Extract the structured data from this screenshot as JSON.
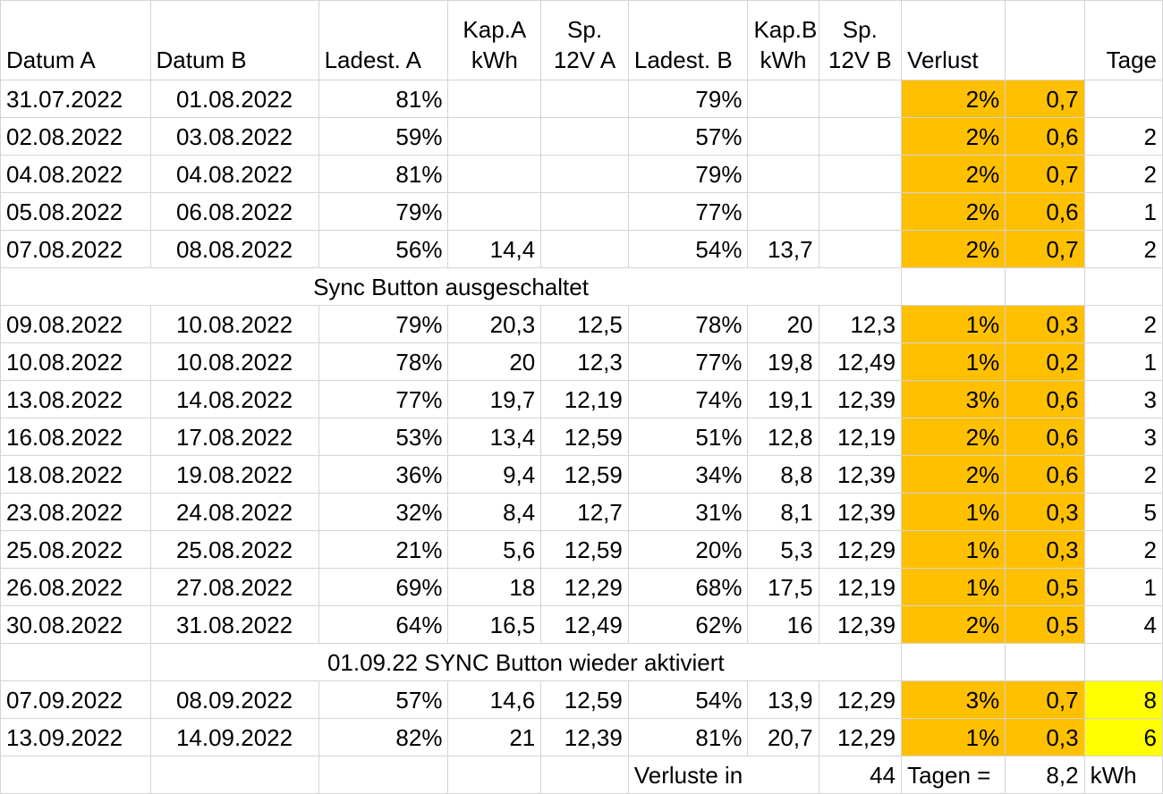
{
  "headers": [
    "Datum A",
    "Datum B",
    "Ladest. A",
    "Kap.A kWh",
    "Sp. 12V A",
    "Ladest. B",
    "Kap.B kWh",
    "Sp. 12V B",
    "Verlust",
    "",
    "Tage"
  ],
  "header_lines": [
    [
      "",
      "",
      "",
      "Kap.A",
      "Sp.",
      "",
      "Kap.B",
      "Sp.",
      "",
      "",
      ""
    ],
    [
      "Datum A",
      "Datum B",
      "Ladest. A",
      "kWh",
      "12V A",
      "Ladest. B",
      "kWh",
      "12V B",
      "Verlust",
      "",
      "Tage"
    ]
  ],
  "rows_group1": [
    [
      "31.07.2022",
      "01.08.2022",
      "81%",
      "",
      "",
      "79%",
      "",
      "",
      "2%",
      "0,7",
      ""
    ],
    [
      "02.08.2022",
      "03.08.2022",
      "59%",
      "",
      "",
      "57%",
      "",
      "",
      "2%",
      "0,6",
      "2"
    ],
    [
      "04.08.2022",
      "04.08.2022",
      "81%",
      "",
      "",
      "79%",
      "",
      "",
      "2%",
      "0,7",
      "2"
    ],
    [
      "05.08.2022",
      "06.08.2022",
      "79%",
      "",
      "",
      "77%",
      "",
      "",
      "2%",
      "0,6",
      "1"
    ],
    [
      "07.08.2022",
      "08.08.2022",
      "56%",
      "14,4",
      "",
      "54%",
      "13,7",
      "",
      "2%",
      "0,7",
      "2"
    ]
  ],
  "note1": "Sync Button ausgeschaltet",
  "rows_group2": [
    [
      "09.08.2022",
      "10.08.2022",
      "79%",
      "20,3",
      "12,5",
      "78%",
      "20",
      "12,3",
      "1%",
      "0,3",
      "2"
    ],
    [
      "10.08.2022",
      "10.08.2022",
      "78%",
      "20",
      "12,3",
      "77%",
      "19,8",
      "12,49",
      "1%",
      "0,2",
      "1"
    ],
    [
      "13.08.2022",
      "14.08.2022",
      "77%",
      "19,7",
      "12,19",
      "74%",
      "19,1",
      "12,39",
      "3%",
      "0,6",
      "3"
    ],
    [
      "16.08.2022",
      "17.08.2022",
      "53%",
      "13,4",
      "12,59",
      "51%",
      "12,8",
      "12,19",
      "2%",
      "0,6",
      "3"
    ],
    [
      "18.08.2022",
      "19.08.2022",
      "36%",
      "9,4",
      "12,59",
      "34%",
      "8,8",
      "12,39",
      "2%",
      "0,6",
      "2"
    ],
    [
      "23.08.2022",
      "24.08.2022",
      "32%",
      "8,4",
      "12,7",
      "31%",
      "8,1",
      "12,39",
      "1%",
      "0,3",
      "5"
    ],
    [
      "25.08.2022",
      "25.08.2022",
      "21%",
      "5,6",
      "12,59",
      "20%",
      "5,3",
      "12,29",
      "1%",
      "0,3",
      "2"
    ],
    [
      "26.08.2022",
      "27.08.2022",
      "69%",
      "18",
      "12,29",
      "68%",
      "17,5",
      "12,19",
      "1%",
      "0,5",
      "1"
    ],
    [
      "30.08.2022",
      "31.08.2022",
      "64%",
      "16,5",
      "12,49",
      "62%",
      "16",
      "12,39",
      "2%",
      "0,5",
      "4"
    ]
  ],
  "note2": "01.09.22 SYNC Button wieder aktiviert",
  "rows_group3": [
    [
      "07.09.2022",
      "08.09.2022",
      "57%",
      "14,6",
      "12,59",
      "54%",
      "13,9",
      "12,29",
      "3%",
      "0,7",
      "8"
    ],
    [
      "13.09.2022",
      "14.09.2022",
      "82%",
      "21",
      "12,39",
      "81%",
      "20,7",
      "12,29",
      "1%",
      "0,3",
      "6"
    ]
  ],
  "summary": {
    "label": "Verluste in",
    "days": "44",
    "days_label": "Tagen =",
    "total": "8,2",
    "unit": "kWh"
  },
  "colors": {
    "loss_highlight": "#ffc000",
    "marker_highlight": "#ffff00",
    "gridline": "#d4d4d4"
  }
}
